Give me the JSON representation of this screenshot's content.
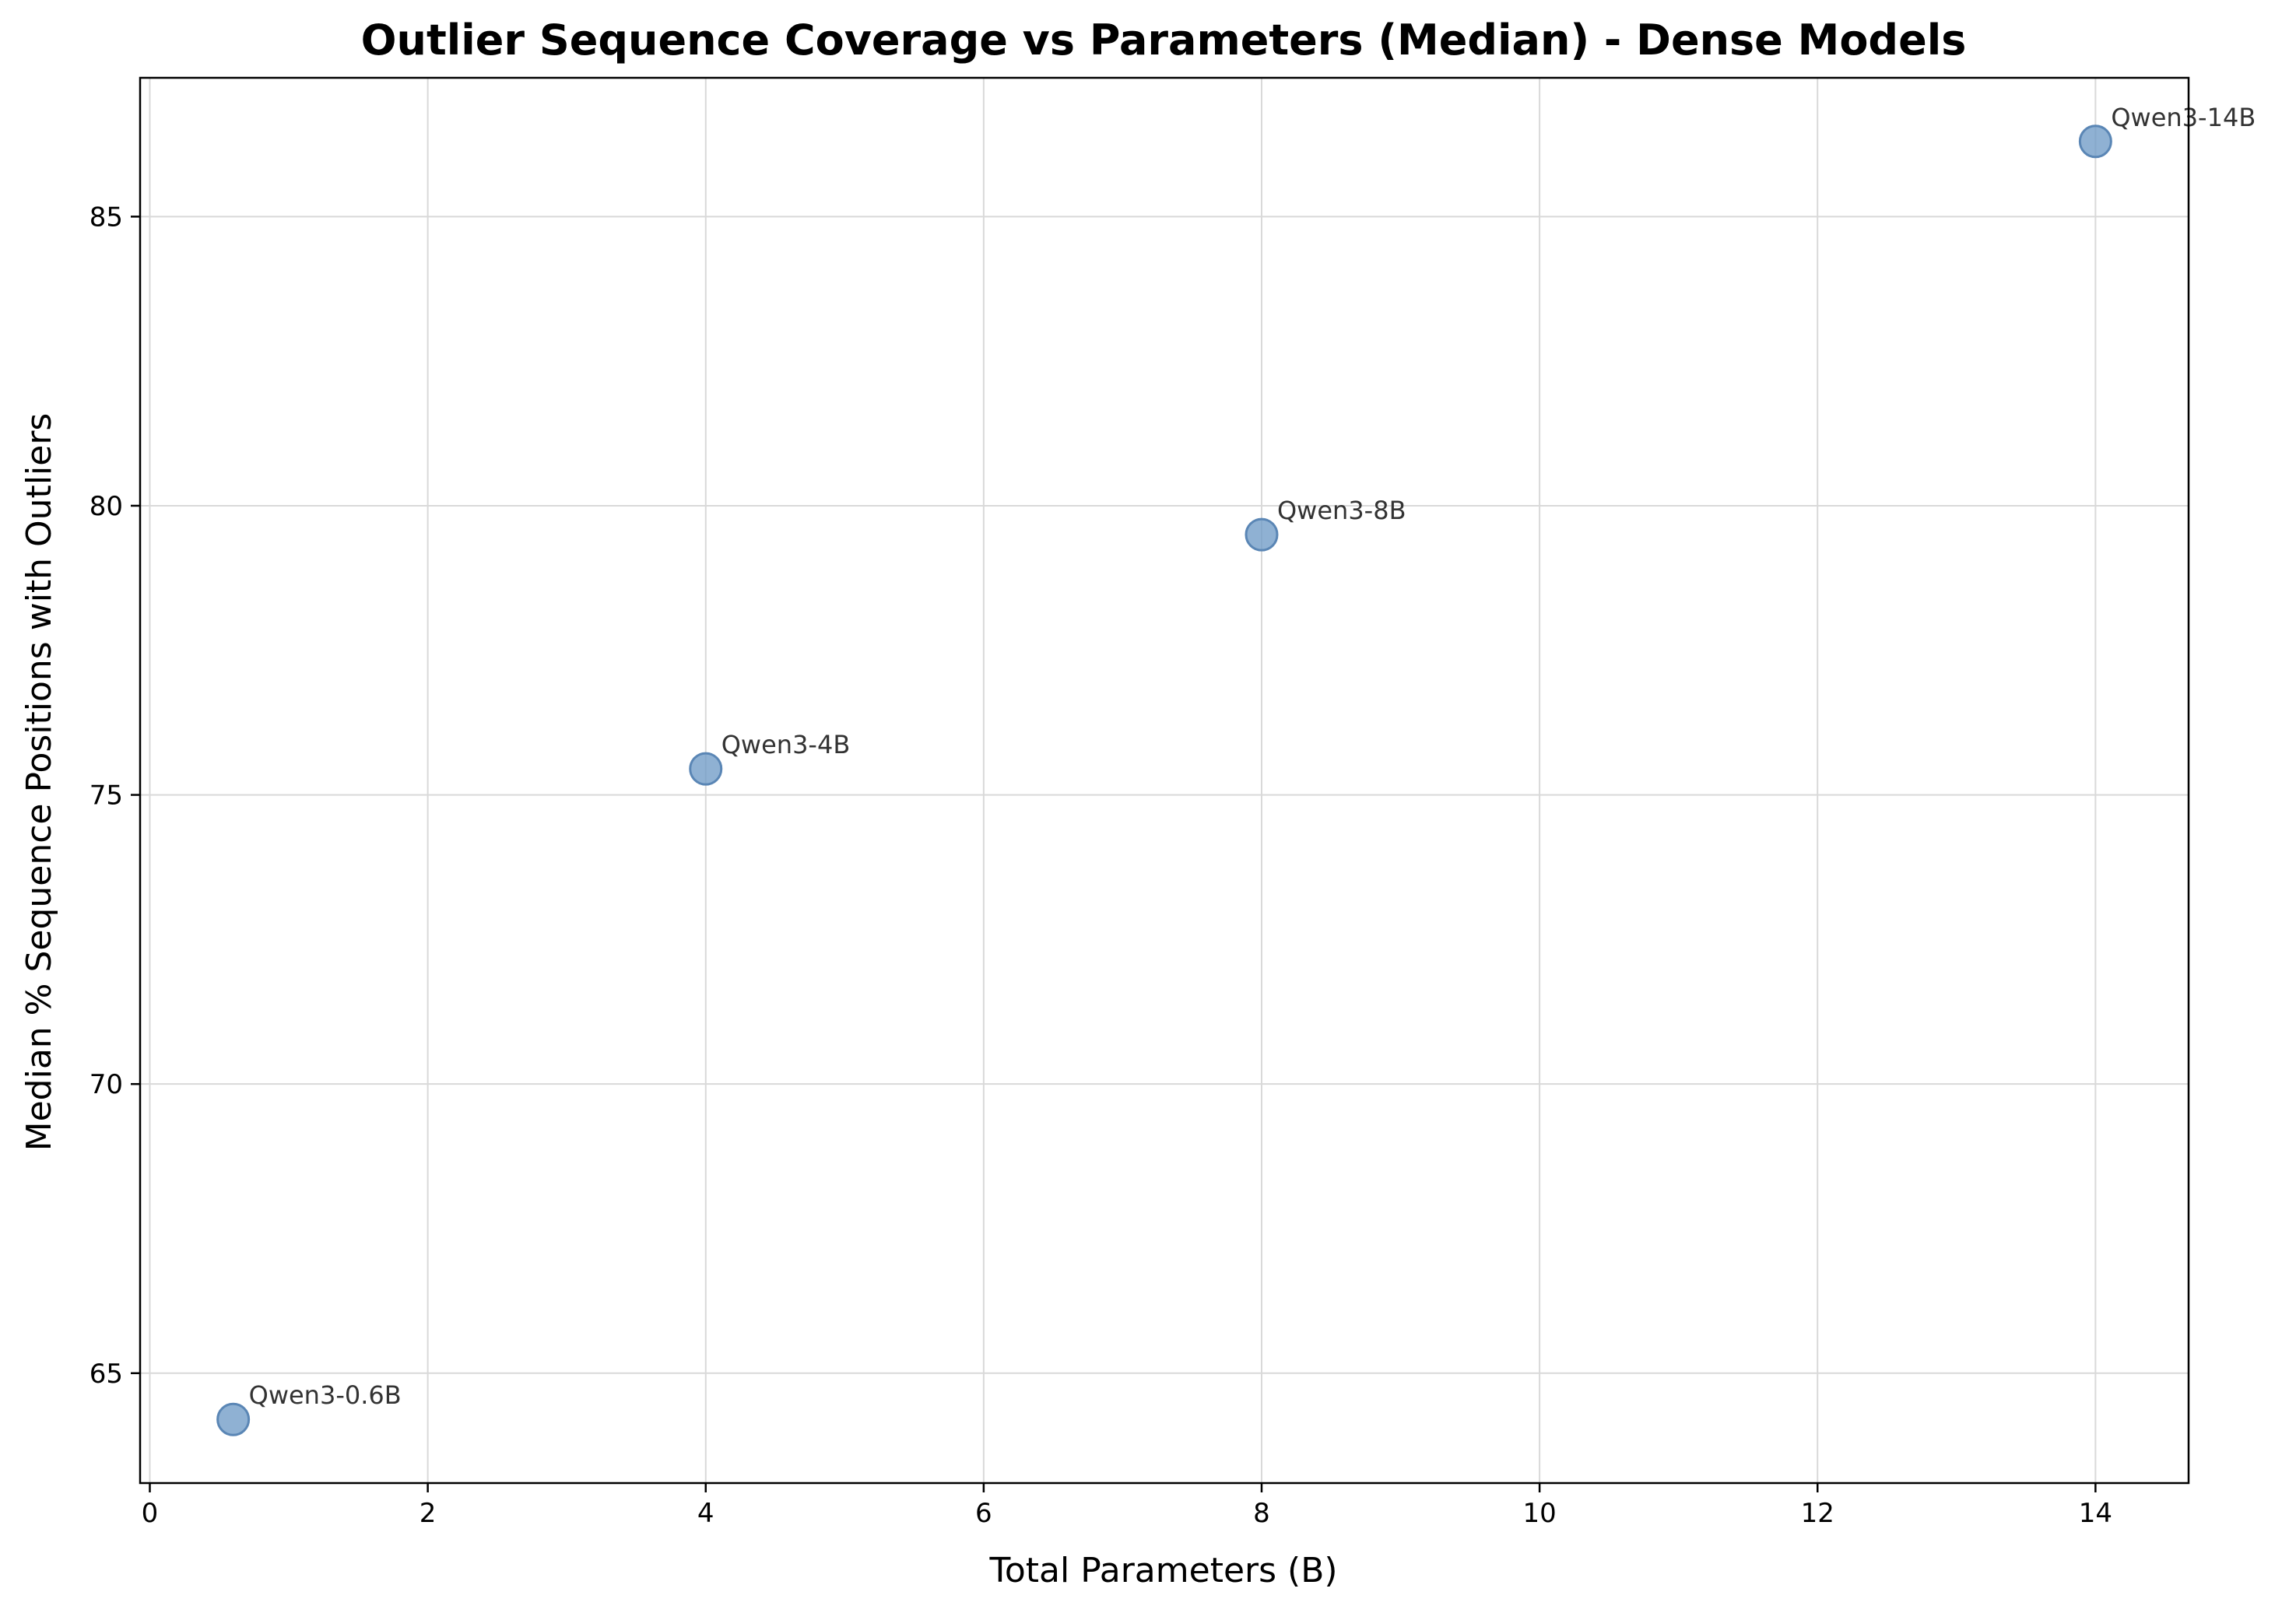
{
  "chart_data": {
    "type": "scatter",
    "title": "Outlier Sequence Coverage vs Parameters (Median) - Dense Models",
    "xlabel": "Total Parameters (B)",
    "ylabel": "Median % Sequence Positions with Outliers",
    "xlim": [
      -0.07,
      14.67
    ],
    "ylim": [
      63.1,
      87.4
    ],
    "xticks": [
      0,
      2,
      4,
      6,
      8,
      10,
      12,
      14
    ],
    "yticks": [
      65,
      70,
      75,
      80,
      85
    ],
    "grid": true,
    "marker_color": "#6f9bc6",
    "marker_edge_color": "#5a86b5",
    "points": [
      {
        "label": "Qwen3-0.6B",
        "x": 0.6,
        "y": 64.2
      },
      {
        "label": "Qwen3-4B",
        "x": 4.0,
        "y": 75.45
      },
      {
        "label": "Qwen3-8B",
        "x": 8.0,
        "y": 79.5
      },
      {
        "label": "Qwen3-14B",
        "x": 14.0,
        "y": 86.3
      }
    ]
  }
}
